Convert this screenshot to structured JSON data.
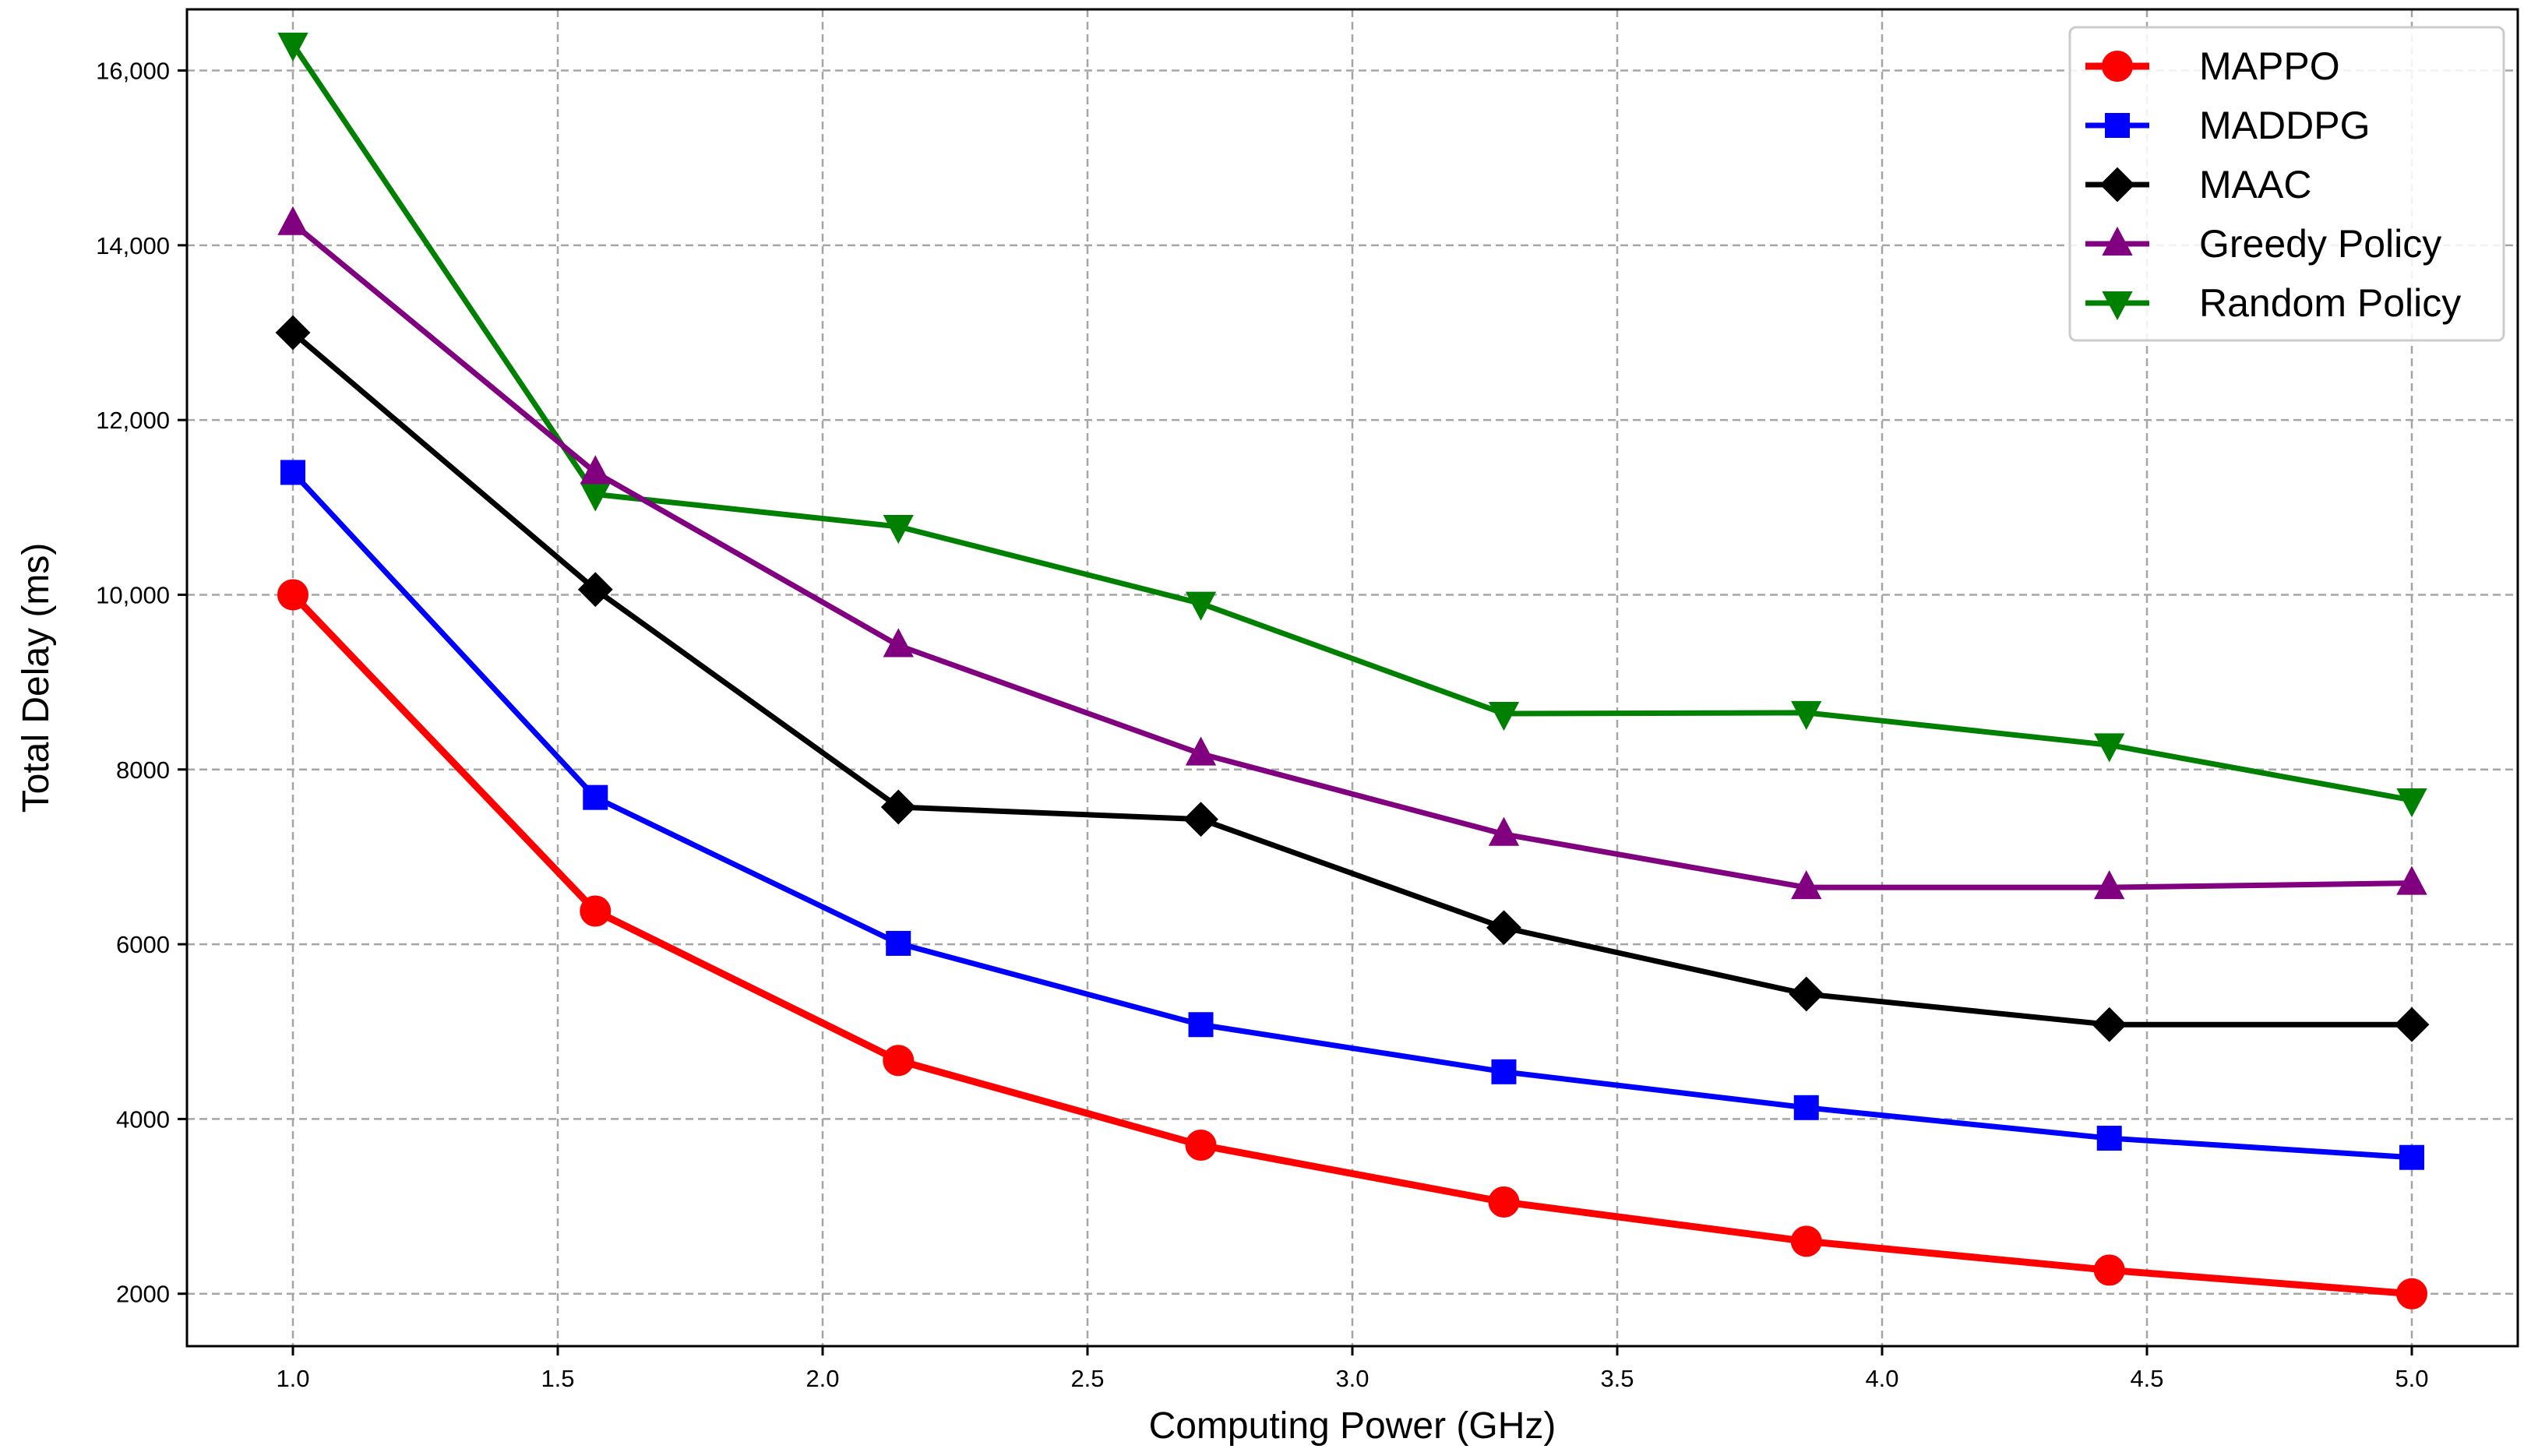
{
  "chart_data": {
    "type": "line",
    "title": "",
    "xlabel": "Computing Power (GHz)",
    "ylabel": "Total Delay (ms)",
    "xlim": [
      0.8,
      5.2
    ],
    "ylim": [
      1400,
      16700
    ],
    "xticks": [
      1.0,
      1.5,
      2.0,
      2.5,
      3.0,
      3.5,
      4.0,
      4.5,
      5.0
    ],
    "xtick_labels": [
      "1.0",
      "1.5",
      "2.0",
      "2.5",
      "3.0",
      "3.5",
      "4.0",
      "4.5",
      "5.0"
    ],
    "yticks": [
      2000,
      4000,
      6000,
      8000,
      10000,
      12000,
      14000,
      16000
    ],
    "ytick_labels": [
      "2000",
      "4000",
      "6000",
      "8000",
      "10,000",
      "12,000",
      "14,000",
      "16,000"
    ],
    "grid": true,
    "legend_position": "top-right",
    "x": [
      1.0,
      1.571,
      2.143,
      2.714,
      3.286,
      3.857,
      4.429,
      5.0
    ],
    "series": [
      {
        "name": "MAPPO",
        "color": "#ff0000",
        "marker": "circle",
        "values": [
          10000,
          6380,
          4670,
          3700,
          3050,
          2600,
          2270,
          2000
        ]
      },
      {
        "name": "MADDPG",
        "color": "#0000ff",
        "marker": "square",
        "values": [
          11400,
          7680,
          6010,
          5080,
          4540,
          4130,
          3780,
          3560
        ]
      },
      {
        "name": "MAAC",
        "color": "#000000",
        "marker": "diamond",
        "values": [
          13000,
          10060,
          7570,
          7430,
          6190,
          5430,
          5080,
          5080
        ]
      },
      {
        "name": "Greedy Policy",
        "color": "#800080",
        "marker": "triangle-up",
        "values": [
          14250,
          11400,
          9420,
          8180,
          7260,
          6650,
          6650,
          6700
        ]
      },
      {
        "name": "Random Policy",
        "color": "#008000",
        "marker": "triangle-down",
        "values": [
          16300,
          11150,
          10780,
          9900,
          8640,
          8650,
          8280,
          7650
        ]
      }
    ]
  }
}
